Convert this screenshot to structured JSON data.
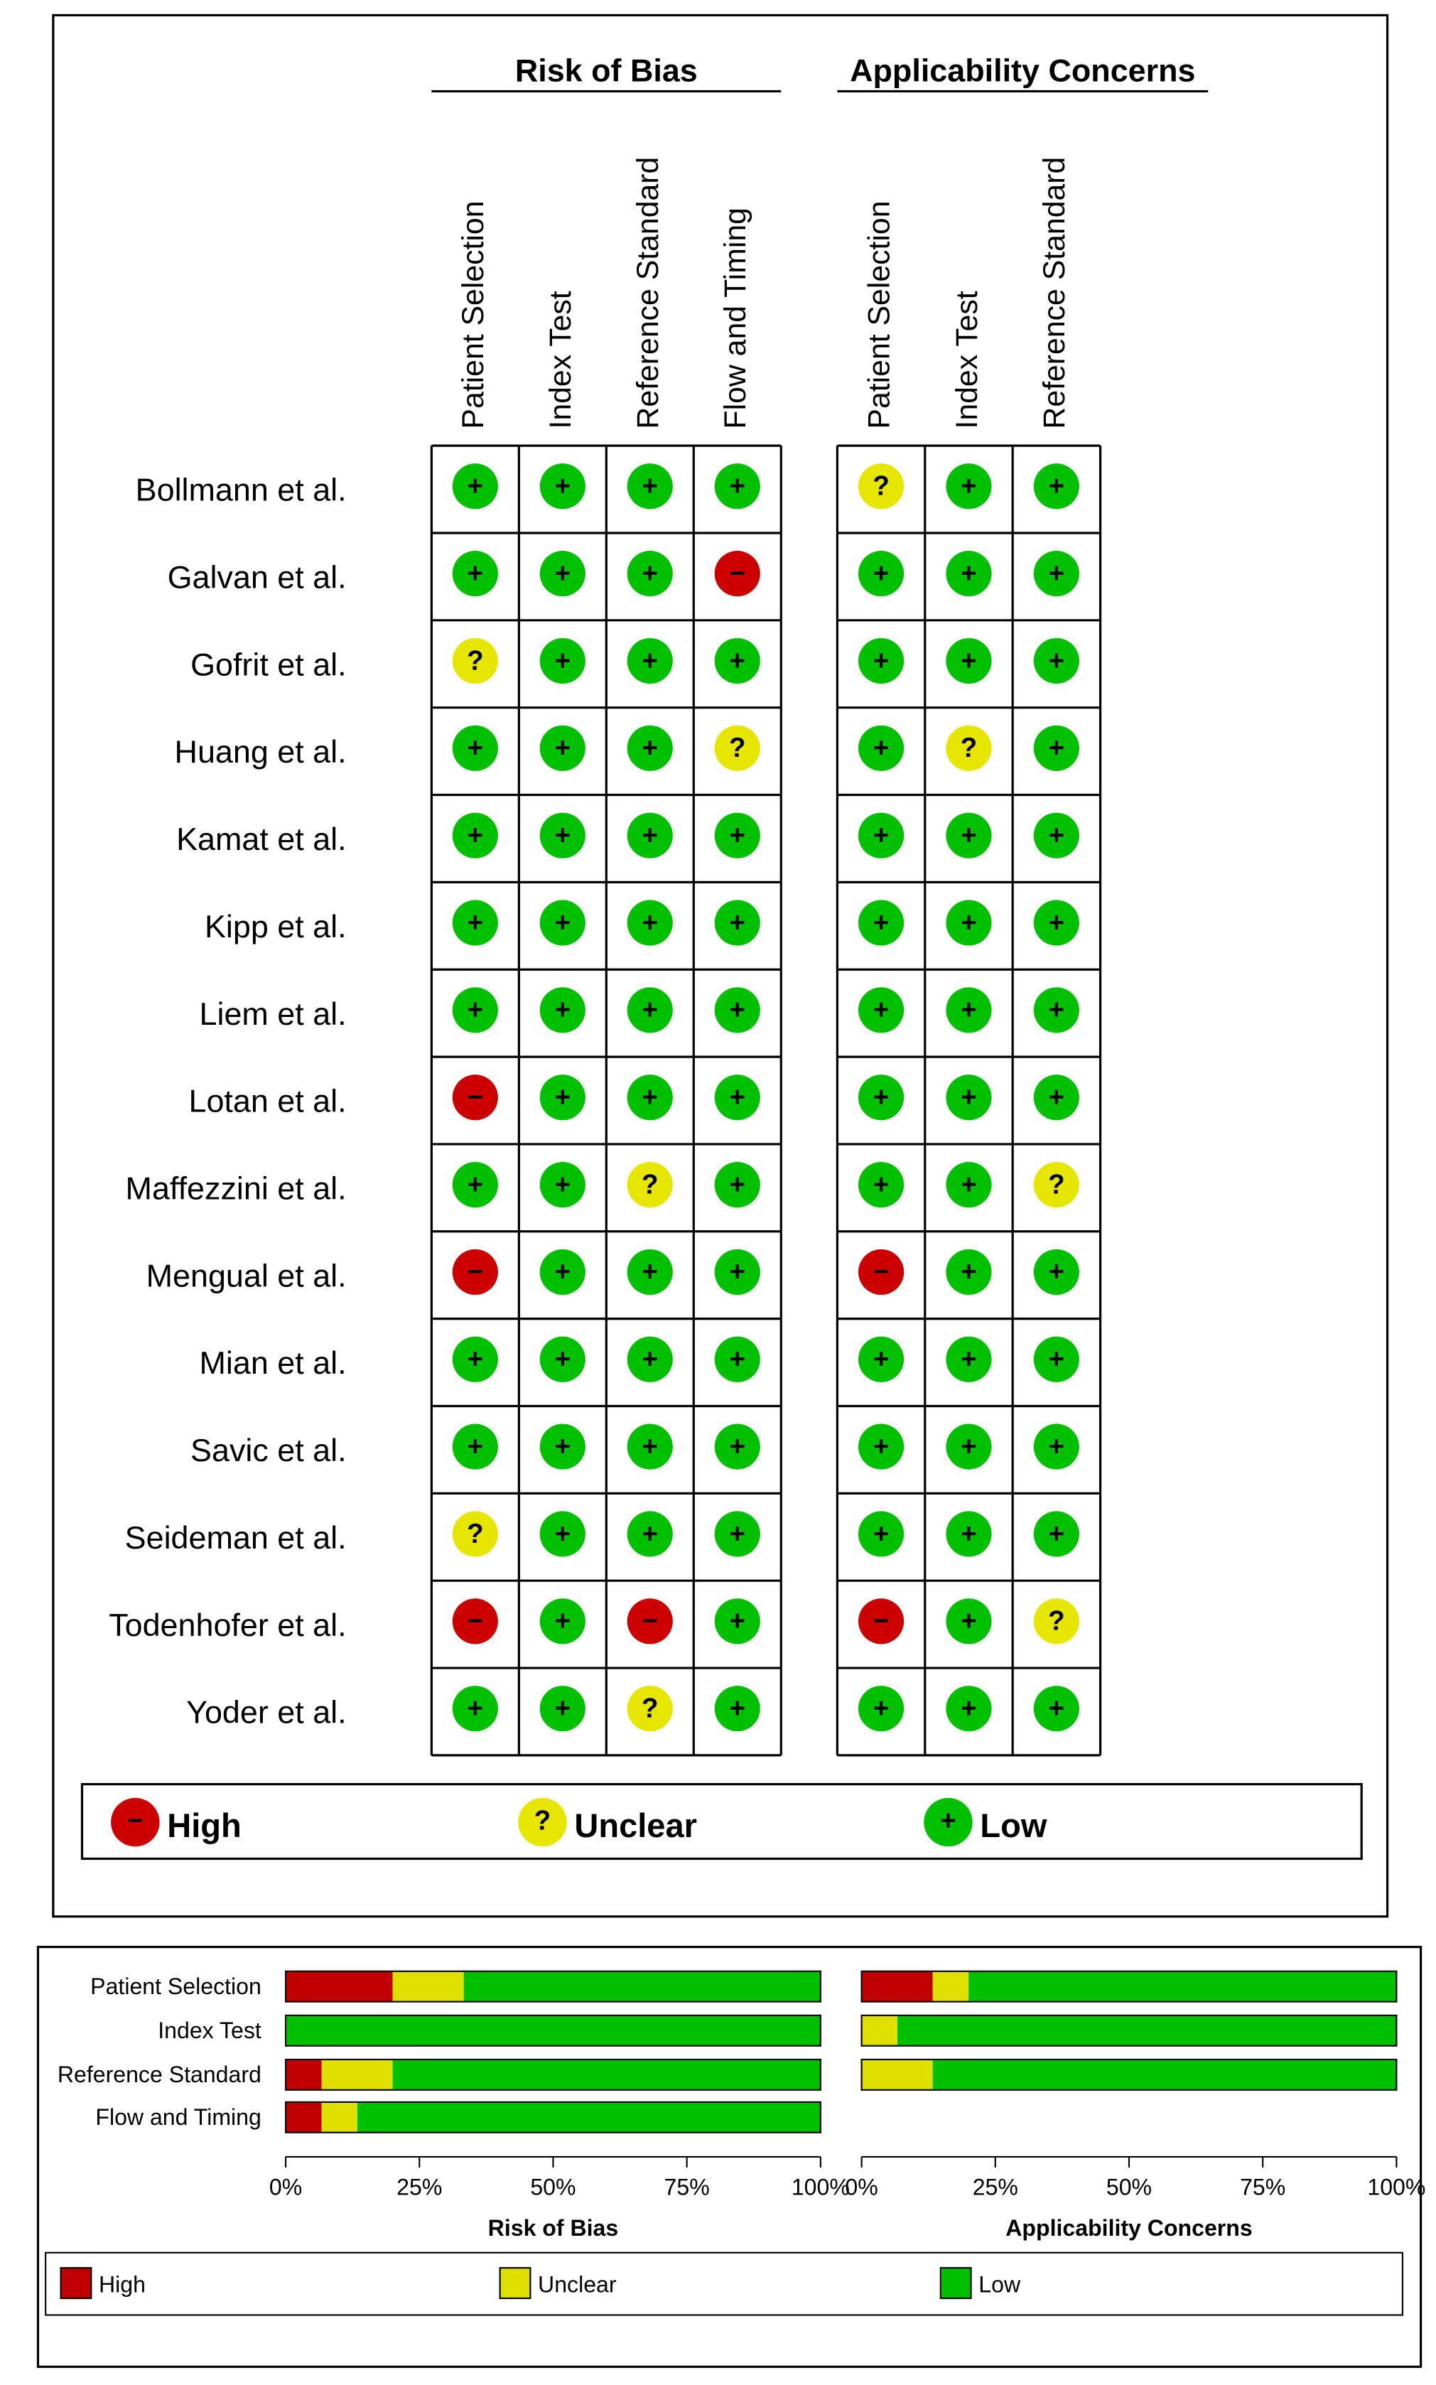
{
  "summary": {
    "headers": [
      "Risk of Bias",
      "Applicability Concerns"
    ],
    "rob_domains": [
      "Patient Selection",
      "Index Test",
      "Reference Standard",
      "Flow and Timing"
    ],
    "app_domains": [
      "Patient Selection",
      "Index Test",
      "Reference Standard"
    ],
    "studies": [
      "Bollmann et al.",
      "Galvan et al.",
      "Gofrit et al.",
      "Huang et al.",
      "Kamat et al.",
      "Kipp et al.",
      "Liem et al.",
      "Lotan et al.",
      "Maffezzini et al.",
      "Mengual et al.",
      "Mian et al.",
      "Savic et al.",
      "Seideman et al.",
      "Todenhofer et al.",
      "Yoder et al."
    ],
    "rob": [
      [
        "+",
        "+",
        "+",
        "+"
      ],
      [
        "+",
        "+",
        "+",
        "−"
      ],
      [
        "?",
        "+",
        "+",
        "+"
      ],
      [
        "+",
        "+",
        "+",
        "?"
      ],
      [
        "+",
        "+",
        "+",
        "+"
      ],
      [
        "+",
        "+",
        "+",
        "+"
      ],
      [
        "+",
        "+",
        "+",
        "+"
      ],
      [
        "−",
        "+",
        "+",
        "+"
      ],
      [
        "+",
        "+",
        "?",
        "+"
      ],
      [
        "−",
        "+",
        "+",
        "+"
      ],
      [
        "+",
        "+",
        "+",
        "+"
      ],
      [
        "+",
        "+",
        "+",
        "+"
      ],
      [
        "?",
        "+",
        "+",
        "+"
      ],
      [
        "−",
        "+",
        "−",
        "+"
      ],
      [
        "+",
        "+",
        "?",
        "+"
      ]
    ],
    "app": [
      [
        "?",
        "+",
        "+"
      ],
      [
        "+",
        "+",
        "+"
      ],
      [
        "+",
        "+",
        "+"
      ],
      [
        "+",
        "?",
        "+"
      ],
      [
        "+",
        "+",
        "+"
      ],
      [
        "+",
        "+",
        "+"
      ],
      [
        "+",
        "+",
        "+"
      ],
      [
        "+",
        "+",
        "+"
      ],
      [
        "+",
        "+",
        "?"
      ],
      [
        "−",
        "+",
        "+"
      ],
      [
        "+",
        "+",
        "+"
      ],
      [
        "+",
        "+",
        "+"
      ],
      [
        "+",
        "+",
        "+"
      ],
      [
        "−",
        "+",
        "?"
      ],
      [
        "+",
        "+",
        "+"
      ]
    ],
    "legend": [
      {
        "symbol": "−",
        "label": "High",
        "color": "#cc0000"
      },
      {
        "symbol": "?",
        "label": "Unclear",
        "color": "#e6e600"
      },
      {
        "symbol": "+",
        "label": "Low",
        "color": "#00c000"
      }
    ]
  },
  "chart_data": {
    "type": "bar",
    "categories": [
      "Patient Selection",
      "Index Test",
      "Reference Standard",
      "Flow and Timing"
    ],
    "panels": [
      {
        "xlabel": "Risk of Bias"
      },
      {
        "xlabel": "Applicability Concerns"
      }
    ],
    "series": [
      {
        "name": "High",
        "color": "#c00000",
        "values": [
          [
            20,
            0,
            6.7,
            6.7
          ],
          [
            13.3,
            0,
            0,
            null
          ]
        ]
      },
      {
        "name": "Unclear",
        "color": "#e0e000",
        "values": [
          [
            13.3,
            0,
            13.3,
            6.7
          ],
          [
            6.7,
            6.7,
            13.3,
            null
          ]
        ]
      },
      {
        "name": "Low",
        "color": "#00c000",
        "values": [
          [
            66.7,
            100,
            80,
            86.7
          ],
          [
            80,
            93.3,
            86.7,
            null
          ]
        ]
      }
    ],
    "xlim": [
      0,
      100
    ],
    "xticks": [
      {
        "value": 0,
        "label": "0%"
      },
      {
        "value": 25,
        "label": "25%"
      },
      {
        "value": 50,
        "label": "50%"
      },
      {
        "value": 75,
        "label": "75%"
      },
      {
        "value": 100,
        "label": "100%"
      }
    ]
  }
}
